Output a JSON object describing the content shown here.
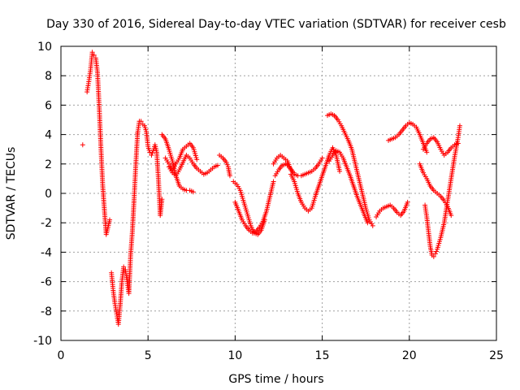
{
  "chart_data": {
    "type": "scatter",
    "title": "Day 330 of 2016, Sidereal Day-to-day VTEC variation (SDTVAR) for receiver cesb",
    "xlabel": "GPS time / hours",
    "ylabel": "SDTVAR / TECUs",
    "xlim": [
      0,
      25
    ],
    "ylim": [
      -10,
      10
    ],
    "xticks": [
      0,
      5,
      10,
      15,
      20,
      25
    ],
    "yticks": [
      -10,
      -8,
      -6,
      -4,
      -2,
      0,
      2,
      4,
      6,
      8,
      10
    ],
    "grid": true,
    "marker": "+",
    "marker_color": "#ff0000",
    "series": [
      {
        "name": "seg1",
        "x": [
          1.25
        ],
        "y": [
          3.3
        ]
      },
      {
        "name": "seg2",
        "x": [
          1.5,
          1.6,
          1.7,
          1.8,
          1.9,
          2.0,
          2.1,
          2.2,
          2.3,
          2.4,
          2.5,
          2.6,
          2.7,
          2.8
        ],
        "y": [
          6.9,
          7.6,
          8.4,
          9.6,
          9.4,
          9.2,
          8.2,
          5.8,
          3.0,
          0.5,
          -1.2,
          -2.8,
          -2.3,
          -1.8
        ]
      },
      {
        "name": "seg3",
        "x": [
          2.9,
          3.0,
          3.1,
          3.2,
          3.3,
          3.4,
          3.5,
          3.6,
          3.7,
          3.8,
          3.9,
          4.0,
          4.1,
          4.2,
          4.3,
          4.4
        ],
        "y": [
          -5.4,
          -6.6,
          -7.5,
          -8.2,
          -8.9,
          -7.6,
          -6.0,
          -5.0,
          -5.2,
          -6.0,
          -6.8,
          -4.2,
          -2.6,
          -0.4,
          2.0,
          4.1
        ]
      },
      {
        "name": "seg4",
        "x": [
          4.4,
          4.5,
          4.6,
          4.7,
          4.8,
          4.9,
          5.0,
          5.1,
          5.2,
          5.3,
          5.4,
          5.5,
          5.6,
          5.7,
          5.8
        ],
        "y": [
          4.1,
          4.9,
          4.9,
          4.7,
          4.6,
          4.2,
          3.2,
          2.8,
          2.6,
          2.9,
          3.3,
          2.8,
          0.9,
          -1.5,
          -0.4
        ]
      },
      {
        "name": "seg5",
        "x": [
          5.8,
          6.0,
          6.2,
          6.4,
          6.6,
          6.8,
          7.0,
          7.2,
          7.4,
          7.6
        ],
        "y": [
          4.0,
          3.7,
          3.0,
          2.2,
          1.2,
          0.5,
          0.3,
          0.2,
          0.2,
          0.1
        ]
      },
      {
        "name": "seg6",
        "x": [
          6.0,
          6.2,
          6.4,
          6.6,
          6.8,
          7.0,
          7.2,
          7.4,
          7.6,
          7.8
        ],
        "y": [
          2.4,
          2.0,
          1.6,
          2.0,
          2.4,
          3.0,
          3.2,
          3.4,
          3.1,
          2.3
        ]
      },
      {
        "name": "seg7",
        "x": [
          6.2,
          6.4,
          6.6,
          6.8,
          7.0,
          7.2,
          7.4,
          7.6,
          7.8,
          8.0,
          8.2,
          8.4,
          8.6,
          8.8,
          9.0
        ],
        "y": [
          1.8,
          1.4,
          1.2,
          1.6,
          2.1,
          2.6,
          2.4,
          2.0,
          1.7,
          1.5,
          1.3,
          1.4,
          1.6,
          1.8,
          1.9
        ]
      },
      {
        "name": "seg8",
        "x": [
          9.1,
          9.3,
          9.5,
          9.6,
          9.7
        ],
        "y": [
          2.6,
          2.4,
          2.1,
          1.8,
          1.2
        ]
      },
      {
        "name": "seg9",
        "x": [
          9.9,
          10.1,
          10.3,
          10.5,
          10.7,
          10.9,
          11.1,
          11.3,
          11.5,
          11.7
        ],
        "y": [
          0.8,
          0.6,
          0.2,
          -0.6,
          -1.4,
          -2.2,
          -2.7,
          -2.8,
          -2.5,
          -1.8
        ]
      },
      {
        "name": "seg10",
        "x": [
          10.0,
          10.2,
          10.4,
          10.6,
          10.8,
          11.0,
          11.2,
          11.4,
          11.6,
          11.8,
          12.0,
          12.2
        ],
        "y": [
          -0.6,
          -1.2,
          -1.8,
          -2.2,
          -2.5,
          -2.7,
          -2.6,
          -2.3,
          -1.9,
          -1.2,
          -0.2,
          0.8
        ]
      },
      {
        "name": "seg11",
        "x": [
          12.2,
          12.4,
          12.6,
          12.8,
          13.0,
          13.2,
          13.4,
          13.6,
          13.8,
          14.0,
          14.2,
          14.4,
          14.6,
          14.8,
          15.0
        ],
        "y": [
          2.0,
          2.4,
          2.6,
          2.4,
          2.2,
          1.6,
          1.3,
          1.2,
          1.2,
          1.3,
          1.4,
          1.5,
          1.7,
          2.0,
          2.4
        ]
      },
      {
        "name": "seg12",
        "x": [
          12.3,
          12.5,
          12.7,
          12.9,
          13.1,
          13.3
        ],
        "y": [
          1.2,
          1.6,
          1.9,
          2.0,
          1.8,
          1.5
        ]
      },
      {
        "name": "seg13",
        "x": [
          13.2,
          13.4,
          13.6,
          13.8,
          14.0,
          14.2,
          14.4,
          14.6,
          14.8,
          15.0,
          15.2,
          15.4,
          15.6,
          15.8,
          16.0
        ],
        "y": [
          1.3,
          0.8,
          0.0,
          -0.6,
          -1.0,
          -1.2,
          -1.0,
          -0.2,
          0.5,
          1.2,
          1.9,
          2.6,
          3.1,
          2.6,
          1.5
        ]
      },
      {
        "name": "seg14",
        "x": [
          15.3,
          15.5,
          15.7,
          15.9,
          16.1,
          16.3,
          16.5,
          16.7,
          16.9,
          17.1,
          17.3,
          17.5,
          17.7,
          17.9
        ],
        "y": [
          5.3,
          5.4,
          5.3,
          5.0,
          4.6,
          4.1,
          3.6,
          3.0,
          2.0,
          1.0,
          0.0,
          -1.0,
          -1.8,
          -2.2
        ]
      },
      {
        "name": "seg15",
        "x": [
          15.4,
          15.6,
          15.8,
          16.0,
          16.2,
          16.4,
          16.6,
          16.8,
          17.0,
          17.2,
          17.4,
          17.6
        ],
        "y": [
          2.2,
          2.6,
          2.9,
          2.8,
          2.4,
          1.8,
          1.2,
          0.5,
          -0.2,
          -0.8,
          -1.4,
          -2.0
        ]
      },
      {
        "name": "seg16",
        "x": [
          18.1,
          18.3,
          18.5,
          18.7,
          18.9,
          19.1,
          19.3,
          19.5,
          19.7,
          19.9
        ],
        "y": [
          -1.6,
          -1.2,
          -1.0,
          -0.9,
          -0.8,
          -1.0,
          -1.3,
          -1.5,
          -1.2,
          -0.6
        ]
      },
      {
        "name": "seg17",
        "x": [
          18.8,
          19.0,
          19.2,
          19.4,
          19.6,
          19.8,
          20.0,
          20.2,
          20.4,
          20.6,
          20.8,
          21.0
        ],
        "y": [
          3.6,
          3.7,
          3.8,
          4.0,
          4.3,
          4.6,
          4.8,
          4.7,
          4.5,
          4.0,
          3.4,
          2.8
        ]
      },
      {
        "name": "seg18",
        "x": [
          20.6,
          20.8,
          21.0,
          21.2,
          21.4,
          21.6,
          21.8,
          22.0,
          22.2,
          22.4
        ],
        "y": [
          2.0,
          1.4,
          1.0,
          0.5,
          0.2,
          0.0,
          -0.2,
          -0.5,
          -0.9,
          -1.5
        ]
      },
      {
        "name": "seg19",
        "x": [
          20.8,
          21.0,
          21.2,
          21.4,
          21.6,
          21.8,
          22.0,
          22.2,
          22.4,
          22.6,
          22.8
        ],
        "y": [
          3.0,
          3.4,
          3.7,
          3.8,
          3.5,
          3.0,
          2.6,
          2.8,
          3.1,
          3.3,
          3.4
        ]
      },
      {
        "name": "seg20",
        "x": [
          20.9,
          21.0,
          21.1,
          21.2,
          21.3,
          21.4,
          21.5,
          21.6,
          21.7,
          21.8,
          22.0,
          22.2,
          22.4,
          22.6,
          22.8,
          22.9
        ],
        "y": [
          -0.8,
          -1.6,
          -2.6,
          -3.6,
          -4.2,
          -4.3,
          -4.1,
          -3.8,
          -3.4,
          -3.0,
          -2.0,
          -0.5,
          1.0,
          2.5,
          3.8,
          4.6
        ]
      }
    ]
  }
}
